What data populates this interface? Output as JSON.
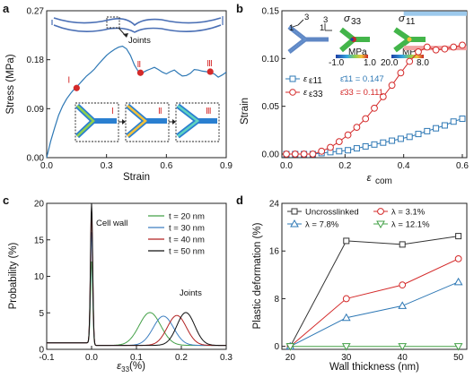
{
  "chart_data": [
    {
      "panel": "a",
      "type": "line",
      "xlabel": "Strain",
      "ylabel": "Stress (MPa)",
      "xlim": [
        0,
        0.9
      ],
      "ylim": [
        0,
        0.27
      ],
      "xticks": [
        "0.0",
        "0.3",
        "0.6",
        "0.9"
      ],
      "xtick_values": [
        0,
        0.3,
        0.6,
        0.9
      ],
      "yticks": [
        "0.00",
        "0.09",
        "0.18",
        "0.27"
      ],
      "ytick_values": [
        0,
        0.09,
        0.18,
        0.27
      ],
      "line_color": "#2e78b5",
      "marker_color": "#d42a2a",
      "series": [
        {
          "x": [
            0,
            0.02,
            0.04,
            0.06,
            0.08,
            0.1,
            0.12,
            0.14,
            0.16,
            0.18,
            0.2,
            0.22,
            0.24,
            0.26,
            0.28,
            0.3,
            0.32,
            0.34,
            0.36,
            0.38,
            0.4,
            0.42,
            0.44,
            0.46,
            0.48,
            0.5,
            0.52,
            0.54,
            0.56,
            0.58,
            0.6,
            0.62,
            0.64,
            0.66,
            0.68,
            0.7,
            0.72,
            0.74,
            0.76,
            0.78,
            0.8,
            0.82,
            0.84,
            0.86,
            0.88,
            0.9
          ],
          "values": [
            0,
            0.03,
            0.055,
            0.078,
            0.095,
            0.108,
            0.118,
            0.127,
            0.134,
            0.142,
            0.15,
            0.156,
            0.163,
            0.172,
            0.18,
            0.188,
            0.194,
            0.199,
            0.203,
            0.205,
            0.2,
            0.188,
            0.17,
            0.158,
            0.156,
            0.16,
            0.163,
            0.166,
            0.162,
            0.157,
            0.154,
            0.158,
            0.161,
            0.155,
            0.15,
            0.151,
            0.155,
            0.162,
            0.161,
            0.159,
            0.158,
            0.156,
            0.154,
            0.148,
            0.152,
            0.157
          ]
        }
      ],
      "markers": [
        {
          "label": "Ⅰ",
          "x": 0.15,
          "y": 0.128
        },
        {
          "label": "Ⅱ",
          "x": 0.47,
          "y": 0.156
        },
        {
          "label": "Ⅲ",
          "x": 0.82,
          "y": 0.158
        }
      ],
      "annotations": {
        "joints": "Joints",
        "insets": [
          "Ⅰ",
          "Ⅱ",
          "Ⅲ"
        ]
      }
    },
    {
      "panel": "b",
      "type": "line",
      "xlabel": "ε",
      "xlabel_sub": "com",
      "ylabel": "Strain",
      "xlim": [
        0,
        0.6
      ],
      "ylim": [
        0,
        0.15
      ],
      "xticks": [
        "0.0",
        "0.2",
        "0.4",
        "0.6"
      ],
      "xtick_values": [
        0,
        0.2,
        0.4,
        0.6
      ],
      "yticks": [
        "0.00",
        "0.05",
        "0.10",
        "0.15"
      ],
      "ytick_values": [
        0,
        0.05,
        0.1,
        0.15
      ],
      "series": [
        {
          "name": "ε11",
          "color": "#2e78b5",
          "marker": "square",
          "x": [
            0,
            0.03,
            0.06,
            0.09,
            0.12,
            0.15,
            0.18,
            0.21,
            0.24,
            0.27,
            0.3,
            0.33,
            0.36,
            0.39,
            0.42,
            0.45,
            0.48,
            0.51,
            0.54,
            0.57,
            0.6
          ],
          "values": [
            0,
            0.0,
            0.0,
            0.0,
            0.001,
            0.002,
            0.003,
            0.004,
            0.006,
            0.008,
            0.01,
            0.012,
            0.014,
            0.016,
            0.018,
            0.021,
            0.024,
            0.027,
            0.03,
            0.034,
            0.037
          ]
        },
        {
          "name": "ε33",
          "color": "#d42a2a",
          "marker": "circle",
          "x": [
            0,
            0.03,
            0.06,
            0.09,
            0.12,
            0.15,
            0.18,
            0.21,
            0.24,
            0.27,
            0.3,
            0.33,
            0.36,
            0.39,
            0.42,
            0.45,
            0.48,
            0.51,
            0.54,
            0.57,
            0.6
          ],
          "values": [
            0,
            0.0,
            0.0,
            0.0,
            0.003,
            0.007,
            0.013,
            0.02,
            0.028,
            0.037,
            0.048,
            0.06,
            0.072,
            0.085,
            0.097,
            0.107,
            0.112,
            0.109,
            0.11,
            0.112,
            0.114
          ]
        }
      ],
      "references": [
        {
          "label": "ε̄11 = 0.147",
          "value": 0.147,
          "color": "#9cc9ec",
          "text_color": "#2e78b5"
        },
        {
          "label": "ε̄33 = 0.111",
          "value": 0.111,
          "color": "#f2a3a3",
          "text_color": "#d42a2a"
        }
      ],
      "inset": {
        "axes_numbers": [
          "3",
          "1",
          "3",
          "1"
        ],
        "maps": [
          {
            "title": "σ",
            "sub": "33",
            "cbar": [
              "-1.0",
              "1.0"
            ],
            "unit": "MPa"
          },
          {
            "title": "σ",
            "sub": "11",
            "cbar": [
              "20.0",
              "8.0"
            ],
            "unit": "MPa"
          }
        ]
      }
    },
    {
      "panel": "c",
      "type": "line",
      "xlabel": "ε",
      "xlabel_sub": "33",
      "xlabel_unit": "(%)",
      "ylabel": "Probability (%)",
      "xlim": [
        -0.1,
        0.3
      ],
      "ylim": [
        0,
        20
      ],
      "xticks": [
        "-0.1",
        "0.0",
        "0.1",
        "0.2",
        "0.3"
      ],
      "xtick_values": [
        -0.1,
        0,
        0.1,
        0.2,
        0.3
      ],
      "yticks": [
        "0",
        "5",
        "10",
        "15",
        "20"
      ],
      "ytick_values": [
        0,
        5,
        10,
        15,
        20
      ],
      "series": [
        {
          "name": "t = 20 nm",
          "color": "#43a047",
          "peak_height": 11.5,
          "joint_center": 0.13,
          "joint_height": 4.5,
          "joint_width": 0.034
        },
        {
          "name": "t = 30 nm",
          "color": "#3e7fc1",
          "peak_height": 15.5,
          "joint_center": 0.16,
          "joint_height": 4.0,
          "joint_width": 0.032
        },
        {
          "name": "t = 40 nm",
          "color": "#b22222",
          "peak_height": 18.5,
          "joint_center": 0.19,
          "joint_height": 4.1,
          "joint_width": 0.03
        },
        {
          "name": "t = 50 nm",
          "color": "#111111",
          "peak_height": 19.5,
          "joint_center": 0.21,
          "joint_height": 4.5,
          "joint_width": 0.028
        }
      ],
      "baseline": 0.9,
      "annotations": {
        "cell_wall": "Cell wall",
        "joints": "Joints"
      }
    },
    {
      "panel": "d",
      "type": "line",
      "xlabel": "Wall thickness (nm)",
      "ylabel": "Plastic deformation (%)",
      "xlim": [
        18.5,
        51.5
      ],
      "ylim": [
        -0.5,
        24
      ],
      "xticks": [
        "20",
        "30",
        "40",
        "50"
      ],
      "xtick_values": [
        20,
        30,
        40,
        50
      ],
      "yticks": [
        "0",
        "8",
        "16",
        "24"
      ],
      "ytick_values": [
        0,
        8,
        16,
        24
      ],
      "x": [
        20,
        30,
        40,
        50
      ],
      "series": [
        {
          "name": "Uncrosslinked",
          "color": "#333333",
          "marker": "square",
          "values": [
            0,
            17.7,
            17.1,
            18.5
          ]
        },
        {
          "name": "λ = 3.1%",
          "color": "#d42a2a",
          "marker": "circle",
          "values": [
            0,
            8.0,
            10.3,
            14.7
          ]
        },
        {
          "name": "λ = 7.8%",
          "color": "#2e78b5",
          "marker": "triangle-up",
          "values": [
            0,
            4.8,
            6.8,
            10.8
          ]
        },
        {
          "name": "λ = 12.1%",
          "color": "#43a047",
          "marker": "triangle-down",
          "values": [
            0,
            0.0,
            0.0,
            0.0
          ]
        }
      ]
    }
  ],
  "panels": {
    "a": "a",
    "b": "b",
    "c": "c",
    "d": "d"
  }
}
